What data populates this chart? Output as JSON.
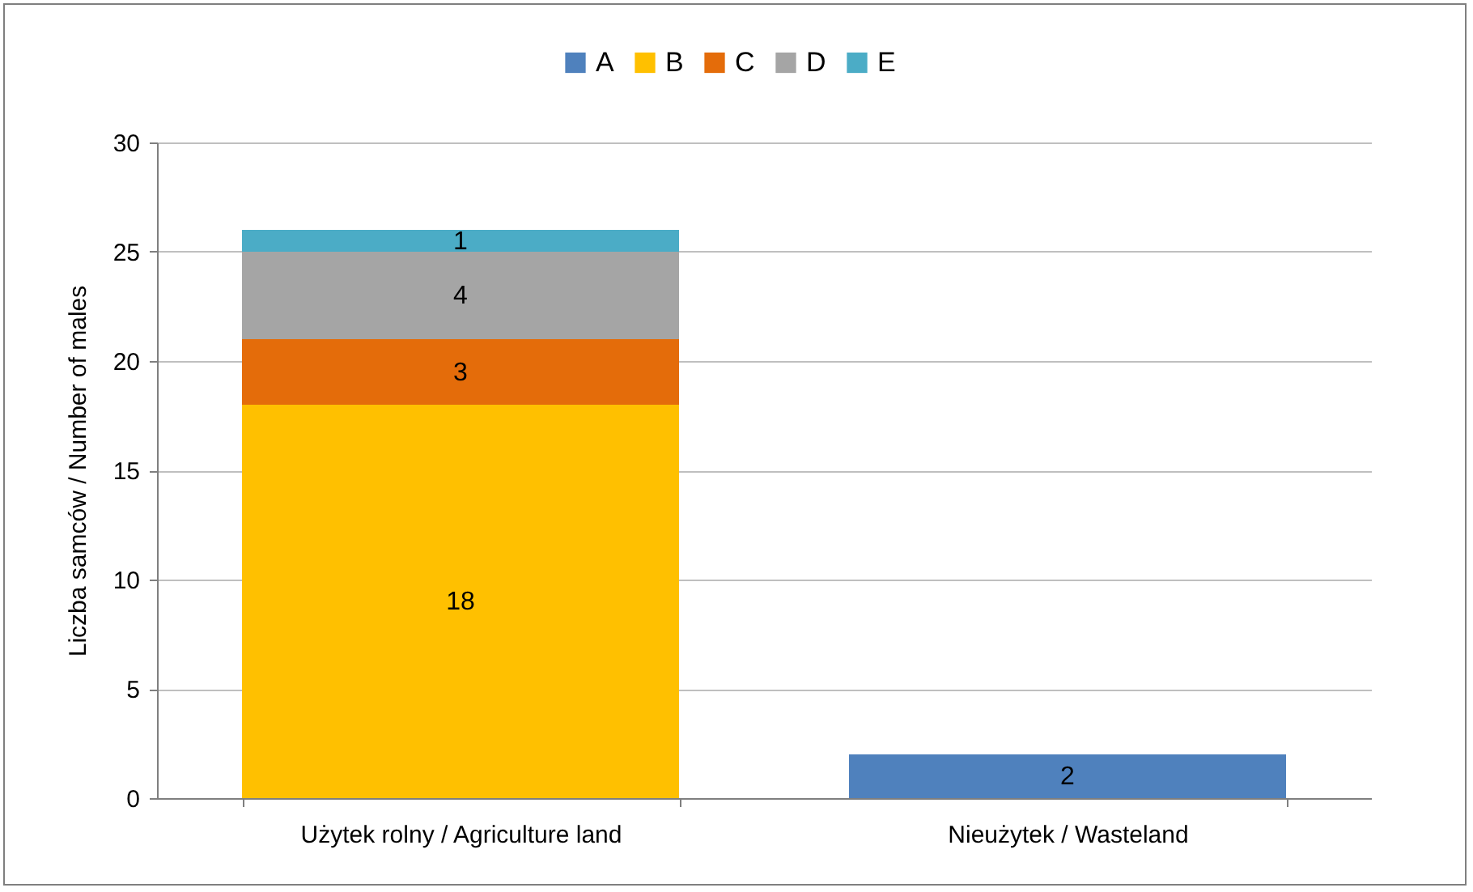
{
  "chart_data": {
    "type": "bar",
    "stacked": true,
    "ylabel": "Liczba samców / Number of males",
    "categories": [
      "Użytek rolny / Agriculture land",
      "Nieużytek / Wasteland"
    ],
    "series": [
      {
        "name": "A",
        "color": "#4f81bd",
        "values": [
          null,
          2
        ]
      },
      {
        "name": "B",
        "color": "#ffc000",
        "values": [
          18,
          null
        ]
      },
      {
        "name": "C",
        "color": "#e46c0a",
        "values": [
          3,
          null
        ]
      },
      {
        "name": "D",
        "color": "#a5a5a5",
        "values": [
          4,
          null
        ]
      },
      {
        "name": "E",
        "color": "#4bacc6",
        "values": [
          1,
          null
        ]
      }
    ],
    "ylim": [
      0,
      30
    ],
    "yticks": [
      0,
      5,
      10,
      15,
      20,
      25,
      30
    ],
    "grid": "y",
    "legend": "top",
    "data_labels": true
  }
}
